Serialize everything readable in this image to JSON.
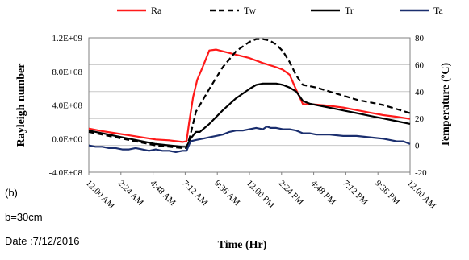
{
  "chart_data": {
    "type": "line",
    "xlabel": "Time (Hr)",
    "ylabel_left": "Rayleigh number",
    "ylabel_right": "Temperature (ºC)",
    "x_tick_labels": [
      "12:00 AM",
      "2:24 AM",
      "4:48 AM",
      "7:12 AM",
      "9:36 AM",
      "12:00 PM",
      "2:24 PM",
      "4:48 PM",
      "7:12 PM",
      "9:36 PM",
      "12:00 AM"
    ],
    "x_range_hours": [
      0,
      24
    ],
    "y_left": {
      "range": [
        -400000000,
        1200000000
      ],
      "tick_labels": [
        "-4.0E+08",
        "0.0E+00",
        "4.0E+08",
        "8.0E+08",
        "1.2E+09"
      ]
    },
    "y_right": {
      "range": [
        -20,
        80
      ],
      "tick_labels": [
        "-20",
        "0",
        "20",
        "40",
        "60",
        "80"
      ]
    },
    "grid": "horizontal",
    "legend_position": "top",
    "series": [
      {
        "name": "Ra",
        "axis": "left",
        "color": "#ff1a1a",
        "dash": "solid",
        "x": [
          0,
          1,
          2,
          3,
          4,
          5,
          6,
          7,
          7.3,
          7.5,
          7.8,
          8.1,
          8.5,
          9,
          9.5,
          10,
          11,
          12,
          13,
          14,
          14.5,
          15,
          15.5,
          16,
          16.5,
          17,
          18,
          19,
          20,
          21,
          22,
          23,
          24
        ],
        "y": [
          120000000,
          90000000,
          65000000,
          40000000,
          15000000,
          -10000000,
          -20000000,
          -40000000,
          -30000000,
          200000000,
          500000000,
          700000000,
          850000000,
          1050000000,
          1060000000,
          1040000000,
          1000000000,
          960000000,
          900000000,
          850000000,
          820000000,
          760000000,
          580000000,
          410000000,
          410000000,
          405000000,
          390000000,
          370000000,
          340000000,
          310000000,
          280000000,
          260000000,
          235000000
        ]
      },
      {
        "name": "Tw",
        "axis": "right",
        "color": "#000000",
        "dash": "dashed",
        "x": [
          0,
          1,
          2,
          3,
          4,
          5,
          6,
          7,
          7.3,
          7.6,
          8,
          9,
          10,
          11,
          12,
          12.5,
          13,
          13.5,
          14,
          14.5,
          15,
          15.5,
          16,
          16.5,
          17,
          18,
          19,
          20,
          21,
          22,
          23,
          24
        ],
        "y": [
          10,
          8,
          6,
          4,
          2,
          0,
          -1,
          -2,
          -2,
          8,
          25,
          42,
          58,
          70,
          77,
          79,
          79,
          78,
          75,
          70,
          62,
          52,
          45,
          44,
          43,
          40,
          37,
          34,
          32,
          30,
          27,
          24
        ]
      },
      {
        "name": "Tr",
        "axis": "right",
        "color": "#000000",
        "dash": "solid",
        "x": [
          0,
          1,
          2,
          3,
          4,
          5,
          6,
          7,
          7.3,
          7.6,
          8,
          8.3,
          9,
          10,
          11,
          12,
          12.5,
          13,
          13.5,
          14,
          14.5,
          15,
          15.5,
          16,
          16.5,
          17,
          18,
          19,
          20,
          21,
          22,
          23,
          24
        ],
        "y": [
          11,
          9,
          7,
          5,
          3,
          1,
          0,
          -1,
          -1,
          5,
          10,
          10,
          16,
          26,
          35,
          42,
          45,
          46,
          46,
          46,
          45,
          43,
          40,
          33,
          31,
          30,
          28,
          26,
          24,
          22,
          20,
          18,
          16
        ]
      },
      {
        "name": "Ta",
        "axis": "right",
        "color": "#1a2e6e",
        "dash": "solid",
        "x": [
          0,
          0.5,
          1,
          1.5,
          2,
          2.5,
          3,
          3.5,
          4,
          4.5,
          5,
          5.5,
          6,
          6.5,
          7,
          7.3,
          7.6,
          8,
          8.5,
          9,
          9.5,
          10,
          10.5,
          11,
          11.5,
          12,
          12.5,
          13,
          13.3,
          13.6,
          14,
          14.5,
          15,
          15.5,
          16,
          16.5,
          17,
          18,
          19,
          20,
          21,
          22,
          22.5,
          23,
          23.5,
          24
        ],
        "y": [
          0,
          -1,
          -1,
          -2,
          -2,
          -3,
          -3,
          -2,
          -3,
          -4,
          -3,
          -4,
          -4,
          -5,
          -4,
          -4,
          3,
          4,
          5,
          6,
          7,
          8,
          10,
          11,
          11,
          12,
          13,
          12,
          14,
          13,
          13,
          12,
          12,
          11,
          9,
          9,
          8,
          8,
          7,
          7,
          6,
          5,
          4,
          3,
          3,
          1
        ]
      }
    ],
    "caption_lines": [
      "(b)",
      "b=30cm",
      "Date :7/12/2016"
    ]
  }
}
